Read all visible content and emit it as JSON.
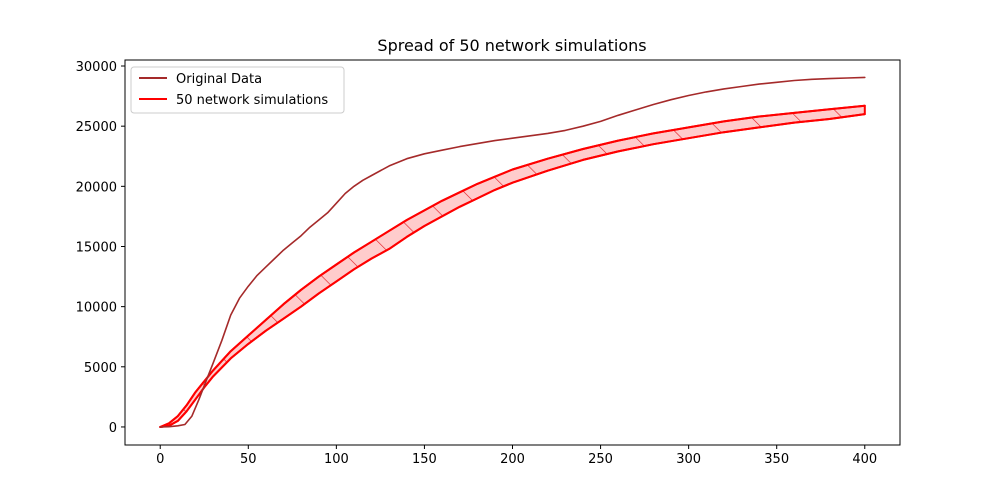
{
  "chart_data": {
    "type": "line",
    "title": "Spread of 50 network simulations",
    "xlabel": "",
    "ylabel": "",
    "xlim": [
      -20,
      420
    ],
    "ylim": [
      -1500,
      30500
    ],
    "x_ticks": [
      0,
      50,
      100,
      150,
      200,
      250,
      300,
      350,
      400
    ],
    "y_ticks": [
      0,
      5000,
      10000,
      15000,
      20000,
      25000,
      30000
    ],
    "grid": false,
    "legend_position": "top-left",
    "series": [
      {
        "name": "Original Data",
        "color": "#a52a2a",
        "x": [
          0,
          5,
          10,
          14,
          18,
          22,
          26,
          30,
          35,
          40,
          45,
          50,
          55,
          60,
          65,
          70,
          75,
          80,
          85,
          90,
          95,
          100,
          105,
          110,
          115,
          120,
          130,
          140,
          150,
          160,
          170,
          180,
          190,
          200,
          210,
          220,
          230,
          240,
          250,
          260,
          270,
          280,
          290,
          300,
          310,
          320,
          330,
          340,
          350,
          360,
          370,
          380,
          390,
          400
        ],
        "y": [
          0,
          20,
          100,
          200,
          900,
          2300,
          3800,
          5300,
          7200,
          9300,
          10700,
          11700,
          12600,
          13300,
          14000,
          14700,
          15300,
          15900,
          16600,
          17200,
          17800,
          18600,
          19400,
          20000,
          20500,
          20900,
          21700,
          22300,
          22700,
          23000,
          23300,
          23550,
          23800,
          24000,
          24200,
          24400,
          24650,
          25000,
          25400,
          25900,
          26350,
          26800,
          27200,
          27550,
          27850,
          28100,
          28300,
          28500,
          28650,
          28800,
          28900,
          28950,
          29000,
          29050
        ]
      },
      {
        "name": "50 network simulations",
        "color": "#ff0000",
        "fill_color": "#ffcccc",
        "hatch": "/",
        "x": [
          0,
          5,
          10,
          15,
          20,
          25,
          30,
          40,
          50,
          60,
          70,
          80,
          90,
          100,
          110,
          120,
          130,
          140,
          150,
          160,
          170,
          180,
          190,
          200,
          220,
          240,
          260,
          280,
          300,
          320,
          340,
          360,
          380,
          400
        ],
        "upper": [
          0,
          300,
          900,
          1800,
          2900,
          3800,
          4700,
          6300,
          7600,
          8900,
          10200,
          11400,
          12500,
          13500,
          14500,
          15400,
          16300,
          17200,
          18000,
          18800,
          19500,
          20200,
          20800,
          21400,
          22300,
          23100,
          23800,
          24400,
          24900,
          25400,
          25800,
          26100,
          26400,
          26700
        ],
        "lower": [
          0,
          100,
          500,
          1300,
          2300,
          3300,
          4200,
          5700,
          6900,
          8000,
          9000,
          10000,
          11100,
          12100,
          13100,
          14000,
          14800,
          15800,
          16700,
          17500,
          18300,
          19000,
          19700,
          20300,
          21300,
          22200,
          22900,
          23500,
          24000,
          24500,
          24900,
          25300,
          25600,
          26000
        ]
      }
    ]
  }
}
